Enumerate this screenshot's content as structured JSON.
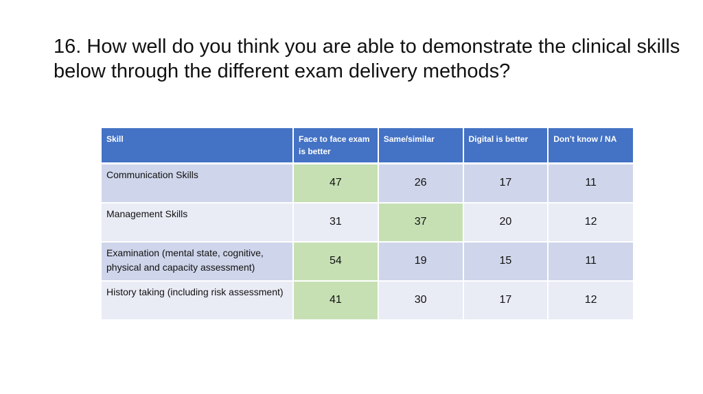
{
  "slide": {
    "title": "16. How well do you think you are able to demonstrate the clinical skills below through the different exam delivery methods?"
  },
  "table": {
    "headers": [
      "Skill",
      "Face to face exam is better",
      "Same/similar",
      "Digital is better",
      "Don’t know / NA"
    ],
    "rows": [
      {
        "skill": "Communication Skills",
        "values": [
          "47",
          "26",
          "17",
          "11"
        ],
        "highlight": 0
      },
      {
        "skill": "Management Skills",
        "values": [
          "31",
          "37",
          "20",
          "12"
        ],
        "highlight": 1
      },
      {
        "skill": "Examination (mental state, cognitive, physical and capacity assessment)",
        "values": [
          "54",
          "19",
          "15",
          "11"
        ],
        "highlight": 0
      },
      {
        "skill": "History taking (including risk assessment)",
        "values": [
          "41",
          "30",
          "17",
          "12"
        ],
        "highlight": 0
      }
    ]
  },
  "colors": {
    "header": "#4472c4",
    "row_odd": "#cfd5ea",
    "row_even": "#e9ebf5",
    "highlight": "#c6e0b4"
  }
}
